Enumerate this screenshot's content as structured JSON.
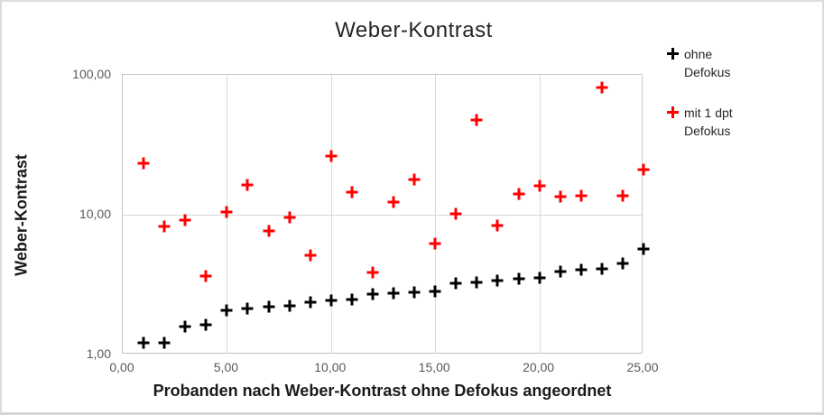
{
  "chart_data": {
    "type": "scatter",
    "title": "Weber-Kontrast",
    "xlabel": "Probanden nach Weber-Kontrast ohne Defokus angeordnet",
    "ylabel": "Weber-Kontrast",
    "xlim": [
      0,
      25
    ],
    "ylim": [
      1,
      100
    ],
    "y_scale": "log",
    "grid": true,
    "legend_position": "right",
    "x_tick_labels": [
      "0,00",
      "5,00",
      "10,00",
      "15,00",
      "20,00",
      "25,00"
    ],
    "y_tick_labels": [
      "1,00",
      "10,00",
      "100,00"
    ],
    "colors": {
      "series1": "#000000",
      "series2": "#ff0000",
      "gridline": "#d9d9d9",
      "tick_text": "#595959"
    },
    "series": [
      {
        "name": "ohne Defokus",
        "color": "#000000",
        "marker": "plus",
        "x": [
          1,
          2,
          3,
          4,
          5,
          6,
          7,
          8,
          9,
          10,
          11,
          12,
          13,
          14,
          15,
          16,
          17,
          18,
          19,
          20,
          21,
          22,
          23,
          24,
          25
        ],
        "y": [
          1.21,
          1.22,
          1.58,
          1.63,
          2.08,
          2.12,
          2.2,
          2.22,
          2.36,
          2.44,
          2.48,
          2.7,
          2.74,
          2.8,
          2.82,
          3.25,
          3.3,
          3.4,
          3.5,
          3.52,
          3.95,
          4.05,
          4.1,
          4.5,
          5.7
        ]
      },
      {
        "name": "mit 1 dpt Defokus",
        "color": "#ff0000",
        "marker": "plus",
        "x": [
          1,
          2,
          3,
          4,
          5,
          6,
          7,
          8,
          9,
          10,
          11,
          12,
          13,
          14,
          15,
          16,
          17,
          18,
          19,
          20,
          21,
          22,
          23,
          24,
          25
        ],
        "y": [
          23.3,
          8.2,
          9.1,
          3.65,
          10.4,
          16.3,
          7.6,
          9.6,
          5.1,
          26.3,
          14.5,
          3.85,
          12.3,
          17.9,
          6.25,
          10.1,
          47.5,
          8.4,
          14.1,
          16.2,
          13.4,
          13.6,
          81.5,
          13.6,
          20.9
        ]
      }
    ]
  }
}
